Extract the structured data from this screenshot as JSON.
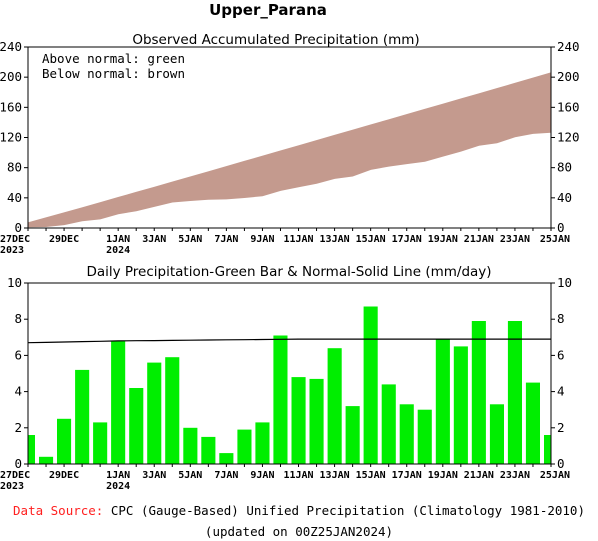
{
  "page_title": "Upper_Parana",
  "footer": {
    "source_label": "Data Source:",
    "source_text": "CPC (Gauge-Based) Unified Precipitation (Climatology 1981-2010)",
    "updated": "(updated on 00Z25JAN2024)"
  },
  "colors": {
    "below_normal_fill": "#c49a8e",
    "daily_bar": "#00ee00",
    "normal_line": "#000000",
    "source_label": "#ff2020"
  },
  "chart_data": [
    {
      "type": "area",
      "title": "Observed Accumulated Precipitation (mm)",
      "legend_lines": [
        "Above normal: green",
        "Below normal: brown"
      ],
      "legend_placement": "top-left",
      "ylim": [
        0,
        240
      ],
      "yticks": [
        0,
        40,
        80,
        120,
        160,
        200,
        240
      ],
      "x_tick_labels": [
        {
          "day": 0,
          "label": "27DEC",
          "sub": "2023"
        },
        {
          "day": 2,
          "label": "29DEC"
        },
        {
          "day": 5,
          "label": "1JAN",
          "sub": "2024"
        },
        {
          "day": 7,
          "label": "3JAN"
        },
        {
          "day": 9,
          "label": "5JAN"
        },
        {
          "day": 11,
          "label": "7JAN"
        },
        {
          "day": 13,
          "label": "9JAN"
        },
        {
          "day": 15,
          "label": "11JAN"
        },
        {
          "day": 17,
          "label": "13JAN"
        },
        {
          "day": 19,
          "label": "15JAN"
        },
        {
          "day": 21,
          "label": "17JAN"
        },
        {
          "day": 23,
          "label": "19JAN"
        },
        {
          "day": 25,
          "label": "21JAN"
        },
        {
          "day": 27,
          "label": "23JAN"
        },
        {
          "day": 29,
          "label": "25JAN"
        }
      ],
      "series": [
        {
          "name": "Observed accumulated",
          "values": [
            1.6,
            2.0,
            4.5,
            9.7,
            12.0,
            18.8,
            23.0,
            28.6,
            34.5,
            36.5,
            38.0,
            38.6,
            40.5,
            42.8,
            49.9,
            54.7,
            59.4,
            65.8,
            69.0,
            77.7,
            82.1,
            85.4,
            88.4,
            95.3,
            101.8,
            109.7,
            113.0,
            120.9,
            125.4,
            127.0
          ]
        },
        {
          "name": "Normal accumulated",
          "values": [
            6.7,
            13.4,
            20.1,
            26.8,
            33.6,
            40.4,
            47.2,
            54.0,
            60.8,
            67.6,
            74.5,
            81.4,
            88.3,
            95.2,
            102.1,
            109.0,
            115.9,
            122.8,
            129.7,
            136.6,
            143.5,
            150.4,
            157.3,
            164.2,
            171.1,
            178.0,
            184.9,
            191.8,
            198.7,
            205.6
          ]
        }
      ]
    },
    {
      "type": "bar",
      "title": "Daily Precipitation-Green Bar & Normal-Solid Line (mm/day)",
      "ylim": [
        0,
        10
      ],
      "yticks": [
        0,
        2,
        4,
        6,
        8,
        10
      ],
      "series": [
        {
          "name": "Daily precipitation",
          "values": [
            1.6,
            0.4,
            2.5,
            5.2,
            2.3,
            6.8,
            4.2,
            5.6,
            5.9,
            2.0,
            1.5,
            0.6,
            1.9,
            2.3,
            7.1,
            4.8,
            4.7,
            6.4,
            3.2,
            8.7,
            4.4,
            3.3,
            3.0,
            6.9,
            6.5,
            7.9,
            3.3,
            7.9,
            4.5,
            1.6
          ]
        },
        {
          "name": "Normal",
          "values": [
            6.7,
            6.72,
            6.74,
            6.76,
            6.78,
            6.8,
            6.81,
            6.82,
            6.83,
            6.84,
            6.85,
            6.86,
            6.87,
            6.88,
            6.89,
            6.9,
            6.9,
            6.9,
            6.9,
            6.9,
            6.9,
            6.9,
            6.9,
            6.9,
            6.9,
            6.9,
            6.9,
            6.9,
            6.9,
            6.9
          ]
        }
      ]
    }
  ]
}
